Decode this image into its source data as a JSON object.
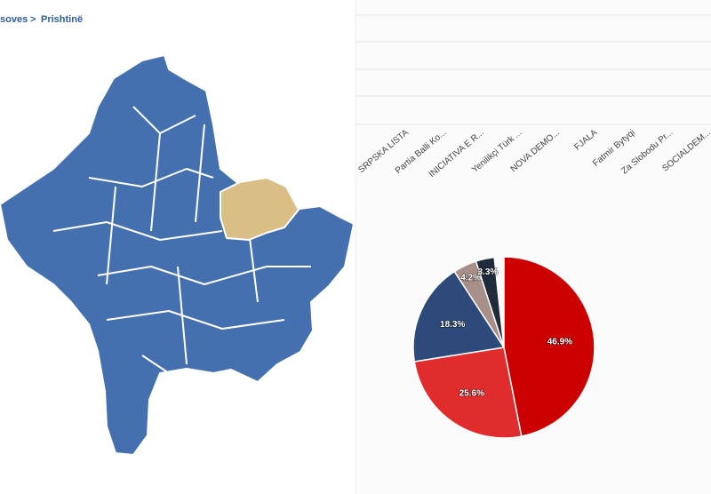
{
  "breadcrumb": {
    "parent": "soves",
    "separator": ">",
    "current": "Prishtinë"
  },
  "bar_chart": {
    "categories": [
      "SRPSKA LISTA",
      "Partia Balli Ko...",
      "INICIATIVA E R...",
      "Yenilikçi Türk ...",
      "NOVA DEMO...",
      "FJALA",
      "Fatmir Bytyqi",
      "Za Slobodu Pr...",
      "SOCIALDEM..."
    ]
  },
  "pie_chart": {
    "type": "pie",
    "values": [
      46.9,
      25.6,
      18.3,
      4.2,
      3.3
    ],
    "value_labels": [
      "46.9%",
      "25.6%",
      "18.3%",
      "4.2%",
      "3.3%"
    ],
    "colors": [
      "#cc0000",
      "#e02c2c",
      "#2d4a7a",
      "#a88f88",
      "#1f2a3a"
    ]
  }
}
